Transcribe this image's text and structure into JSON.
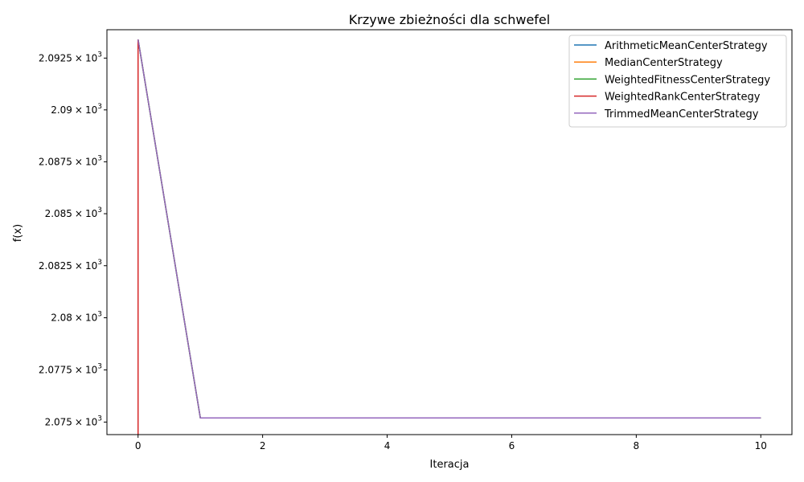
{
  "chart_data": {
    "type": "line",
    "title": "Krzywe zbieżności dla schwefel",
    "xlabel": "Iteracja",
    "ylabel": "f(x)",
    "yscale": "log",
    "xlim": [
      -0.5,
      10.5
    ],
    "ylim": [
      2074.4,
      2093.87
    ],
    "x_ticks": [
      0,
      2,
      4,
      6,
      8,
      10
    ],
    "y_ticks": [
      {
        "value": 2075.0,
        "mantissa": "2.075",
        "exponent": "3"
      },
      {
        "value": 2077.5,
        "mantissa": "2.0775",
        "exponent": "3"
      },
      {
        "value": 2080.0,
        "mantissa": "2.08",
        "exponent": "3"
      },
      {
        "value": 2082.5,
        "mantissa": "2.0825",
        "exponent": "3"
      },
      {
        "value": 2085.0,
        "mantissa": "2.085",
        "exponent": "3"
      },
      {
        "value": 2087.5,
        "mantissa": "2.0875",
        "exponent": "3"
      },
      {
        "value": 2090.0,
        "mantissa": "2.09",
        "exponent": "3"
      },
      {
        "value": 2092.5,
        "mantissa": "2.0925",
        "exponent": "3"
      }
    ],
    "grid": false,
    "legend_position": "top-right",
    "x": [
      0,
      1,
      2,
      3,
      4,
      5,
      6,
      7,
      8,
      10
    ],
    "series": [
      {
        "name": "ArithmeticMeanCenterStrategy",
        "color": "#1f77b4",
        "x": [
          0,
          1,
          2,
          3,
          4,
          5,
          6,
          7,
          8,
          9,
          10
        ],
        "values": [
          2093.4,
          2075.2,
          2075.2,
          2075.2,
          2075.2,
          2075.2,
          2075.2,
          2075.2,
          2075.2,
          2075.2,
          2075.2
        ]
      },
      {
        "name": "MedianCenterStrategy",
        "color": "#ff7f0e",
        "x": [
          0,
          1,
          2,
          3,
          4,
          5,
          6,
          7,
          8,
          9,
          10
        ],
        "values": [
          2093.4,
          2075.2,
          2075.2,
          2075.2,
          2075.2,
          2075.2,
          2075.2,
          2075.2,
          2075.2,
          2075.2,
          2075.2
        ]
      },
      {
        "name": "WeightedFitnessCenterStrategy",
        "color": "#2ca02c",
        "x": [
          0,
          1,
          2,
          3,
          4,
          5,
          6,
          7,
          8,
          9,
          10
        ],
        "values": [
          2093.4,
          2075.2,
          2075.2,
          2075.2,
          2075.2,
          2075.2,
          2075.2,
          2075.2,
          2075.2,
          2075.2,
          2075.2
        ]
      },
      {
        "name": "WeightedRankCenterStrategy",
        "color": "#d62728",
        "x": [
          0,
          0
        ],
        "values": [
          2093.4,
          2074.4
        ]
      },
      {
        "name": "TrimmedMeanCenterStrategy",
        "color": "#9467bd",
        "x": [
          0,
          1,
          2,
          3,
          4,
          5,
          6,
          7,
          8,
          9,
          10
        ],
        "values": [
          2093.4,
          2075.2,
          2075.2,
          2075.2,
          2075.2,
          2075.2,
          2075.2,
          2075.2,
          2075.2,
          2075.2,
          2075.2
        ]
      }
    ]
  }
}
